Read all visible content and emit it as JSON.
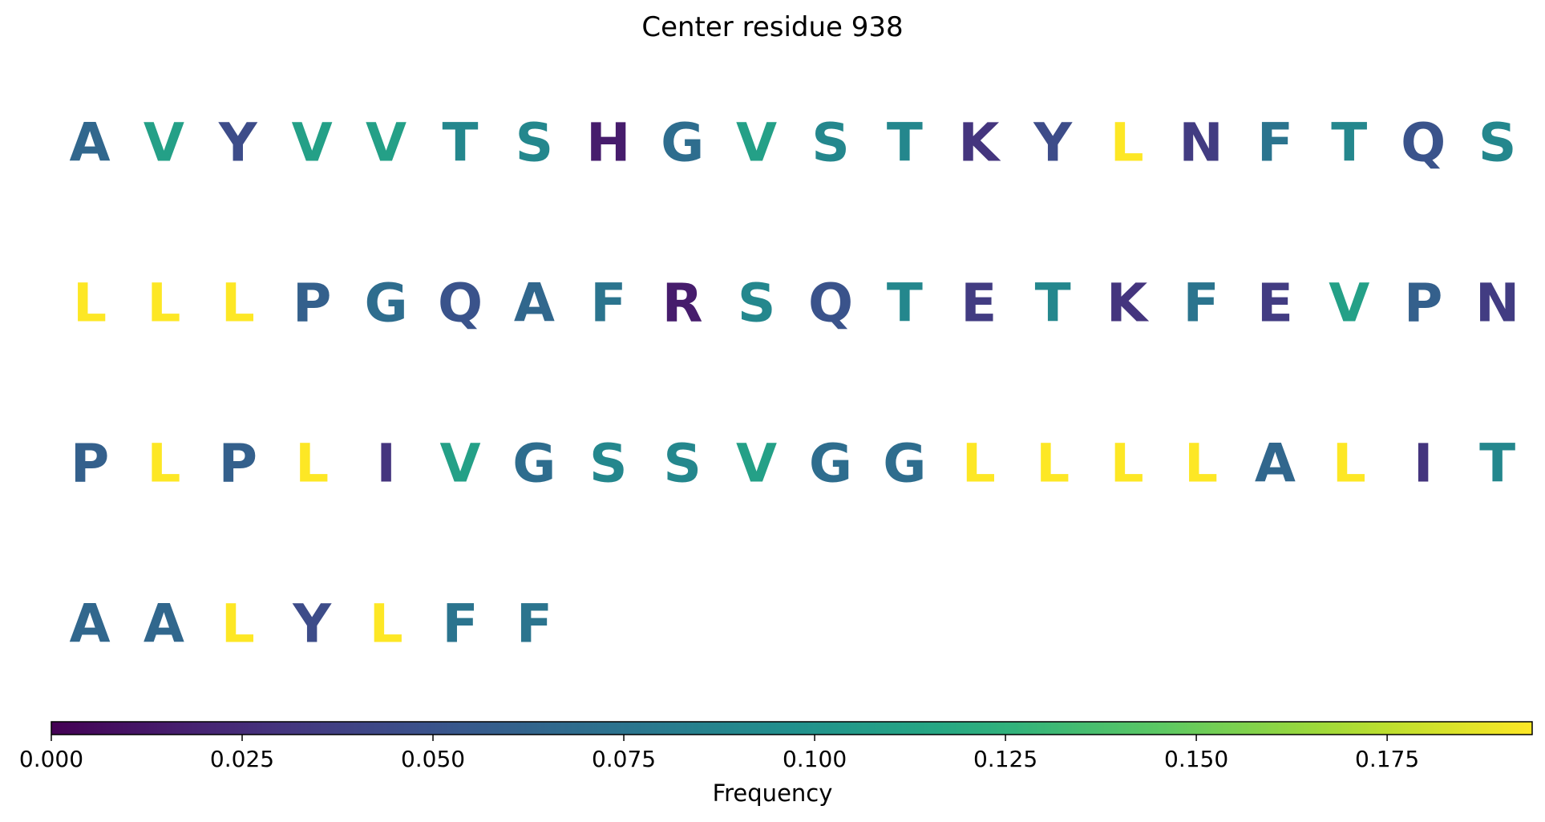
{
  "chart_data": {
    "type": "heatmap",
    "title": "Center residue 938",
    "colormap": "viridis",
    "residues": [
      {
        "aa": "A",
        "freq": 0.065
      },
      {
        "aa": "V",
        "freq": 0.11
      },
      {
        "aa": "Y",
        "freq": 0.045
      },
      {
        "aa": "V",
        "freq": 0.11
      },
      {
        "aa": "V",
        "freq": 0.11
      },
      {
        "aa": "T",
        "freq": 0.09
      },
      {
        "aa": "S",
        "freq": 0.09
      },
      {
        "aa": "H",
        "freq": 0.015
      },
      {
        "aa": "G",
        "freq": 0.07
      },
      {
        "aa": "V",
        "freq": 0.11
      },
      {
        "aa": "S",
        "freq": 0.09
      },
      {
        "aa": "T",
        "freq": 0.09
      },
      {
        "aa": "K",
        "freq": 0.03
      },
      {
        "aa": "Y",
        "freq": 0.045
      },
      {
        "aa": "L",
        "freq": 0.194
      },
      {
        "aa": "N",
        "freq": 0.035
      },
      {
        "aa": "F",
        "freq": 0.075
      },
      {
        "aa": "T",
        "freq": 0.09
      },
      {
        "aa": "Q",
        "freq": 0.05
      },
      {
        "aa": "S",
        "freq": 0.09
      },
      {
        "aa": "L",
        "freq": 0.194
      },
      {
        "aa": "L",
        "freq": 0.194
      },
      {
        "aa": "L",
        "freq": 0.194
      },
      {
        "aa": "P",
        "freq": 0.06
      },
      {
        "aa": "G",
        "freq": 0.07
      },
      {
        "aa": "Q",
        "freq": 0.05
      },
      {
        "aa": "A",
        "freq": 0.065
      },
      {
        "aa": "F",
        "freq": 0.075
      },
      {
        "aa": "R",
        "freq": 0.015
      },
      {
        "aa": "S",
        "freq": 0.09
      },
      {
        "aa": "Q",
        "freq": 0.05
      },
      {
        "aa": "T",
        "freq": 0.09
      },
      {
        "aa": "E",
        "freq": 0.035
      },
      {
        "aa": "T",
        "freq": 0.09
      },
      {
        "aa": "K",
        "freq": 0.03
      },
      {
        "aa": "F",
        "freq": 0.075
      },
      {
        "aa": "E",
        "freq": 0.035
      },
      {
        "aa": "V",
        "freq": 0.11
      },
      {
        "aa": "P",
        "freq": 0.06
      },
      {
        "aa": "N",
        "freq": 0.035
      },
      {
        "aa": "P",
        "freq": 0.06
      },
      {
        "aa": "L",
        "freq": 0.194
      },
      {
        "aa": "P",
        "freq": 0.06
      },
      {
        "aa": "L",
        "freq": 0.194
      },
      {
        "aa": "I",
        "freq": 0.03
      },
      {
        "aa": "V",
        "freq": 0.11
      },
      {
        "aa": "G",
        "freq": 0.07
      },
      {
        "aa": "S",
        "freq": 0.09
      },
      {
        "aa": "S",
        "freq": 0.09
      },
      {
        "aa": "V",
        "freq": 0.11
      },
      {
        "aa": "G",
        "freq": 0.07
      },
      {
        "aa": "G",
        "freq": 0.07
      },
      {
        "aa": "L",
        "freq": 0.194
      },
      {
        "aa": "L",
        "freq": 0.194
      },
      {
        "aa": "L",
        "freq": 0.194
      },
      {
        "aa": "L",
        "freq": 0.194
      },
      {
        "aa": "A",
        "freq": 0.065
      },
      {
        "aa": "L",
        "freq": 0.194
      },
      {
        "aa": "I",
        "freq": 0.03
      },
      {
        "aa": "T",
        "freq": 0.09
      },
      {
        "aa": "A",
        "freq": 0.065
      },
      {
        "aa": "A",
        "freq": 0.065
      },
      {
        "aa": "L",
        "freq": 0.194
      },
      {
        "aa": "Y",
        "freq": 0.045
      },
      {
        "aa": "L",
        "freq": 0.194
      },
      {
        "aa": "F",
        "freq": 0.075
      },
      {
        "aa": "F",
        "freq": 0.075
      }
    ],
    "per_row": 20,
    "colorbar": {
      "label": "Frequency",
      "min": 0.0,
      "max": 0.194,
      "ticks": [
        0.0,
        0.025,
        0.05,
        0.075,
        0.1,
        0.125,
        0.15,
        0.175
      ],
      "tick_labels": [
        "0.000",
        "0.025",
        "0.050",
        "0.075",
        "0.100",
        "0.125",
        "0.150",
        "0.175"
      ],
      "orientation": "horizontal"
    }
  }
}
